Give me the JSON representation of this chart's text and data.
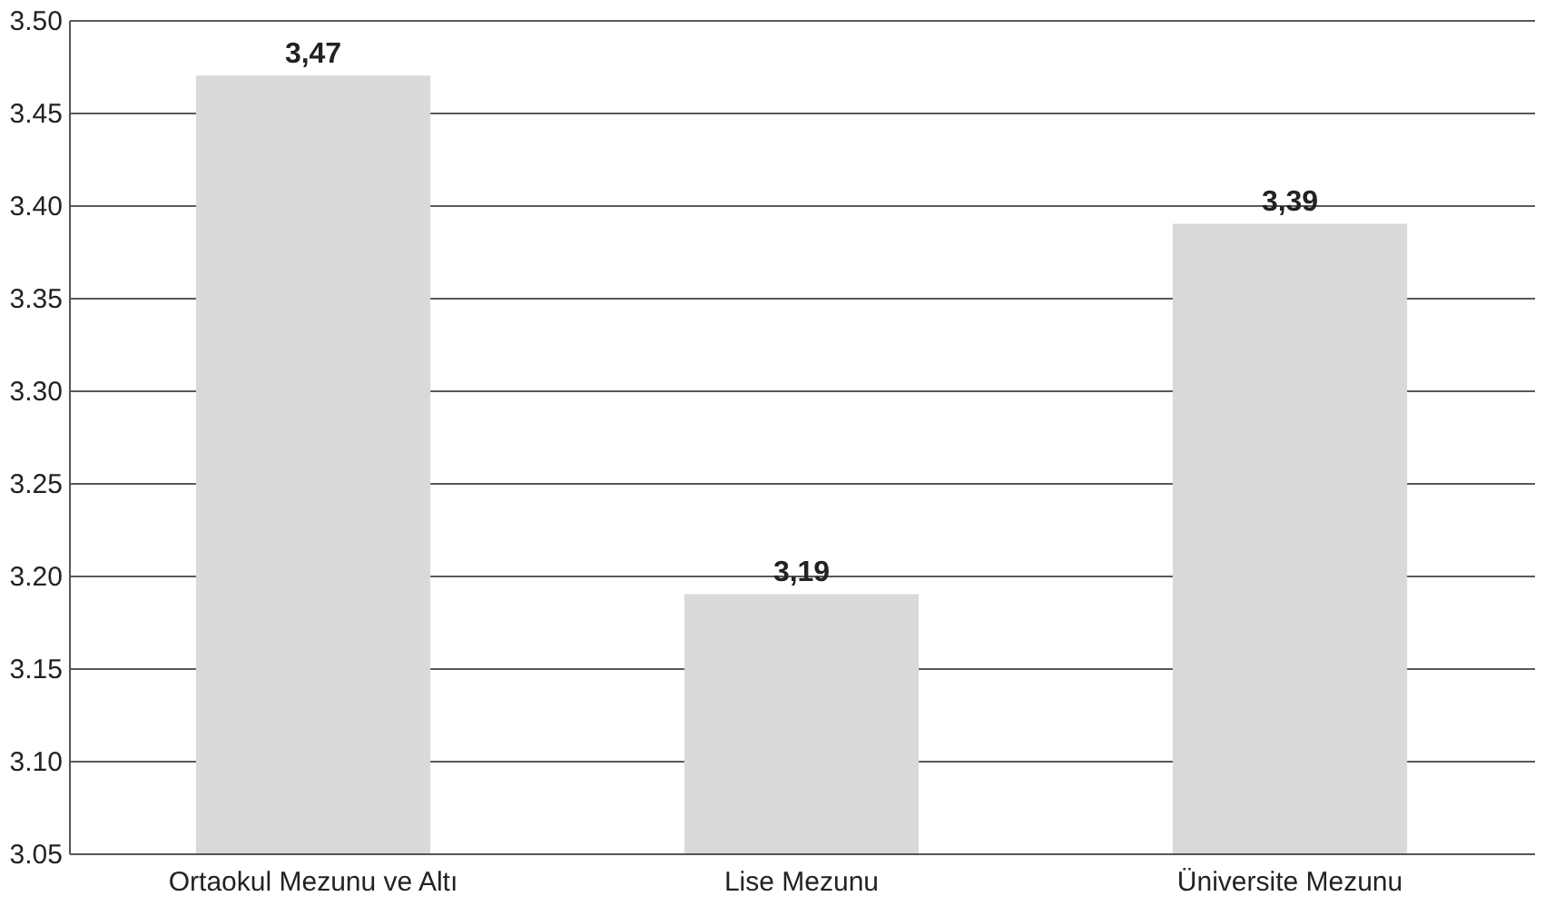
{
  "chart_data": {
    "type": "bar",
    "categories": [
      "Ortaokul Mezunu ve Altı",
      "Lise Mezunu",
      "Üniversite Mezunu"
    ],
    "values": [
      3.47,
      3.19,
      3.39
    ],
    "value_labels": [
      "3,47",
      "3,19",
      "3,39"
    ],
    "color": "#d9d9d9",
    "ylim": [
      3.05,
      3.5
    ],
    "yticks": [
      3.05,
      {
        "value": 3.1,
        "label": "3.10"
      },
      3.15,
      {
        "value": 3.2,
        "label": "3.20"
      },
      3.25,
      {
        "value": 3.3,
        "label": "3.30"
      },
      3.35,
      {
        "value": 3.4,
        "label": "3.40"
      },
      3.45,
      {
        "value": 3.5,
        "label": "3.50"
      }
    ],
    "grid": "y"
  }
}
